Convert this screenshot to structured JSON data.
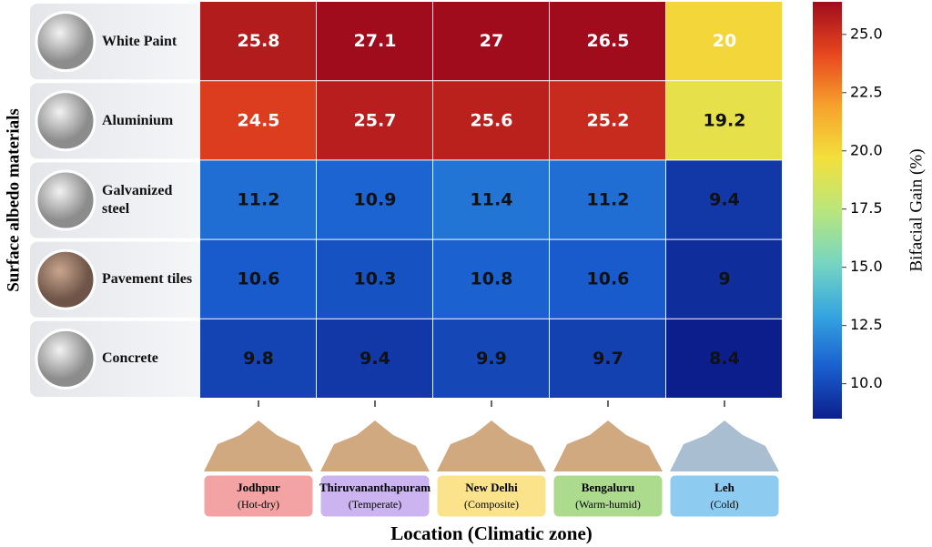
{
  "chart_data": {
    "type": "heatmap",
    "ylabel": "Surface albedo materials",
    "xlabel": "Location (Climatic zone)",
    "rows": [
      "White Paint",
      "Aluminium",
      "Galvanized steel",
      "Pavement tiles",
      "Concrete"
    ],
    "categories": [
      "Jodhpur",
      "Thiruvananthapuram",
      "New Delhi",
      "Bengaluru",
      "Leh"
    ],
    "zones": [
      "(Hot-dry)",
      "(Temperate)",
      "(Composite)",
      "(Warm-humid)",
      "(Cold)"
    ],
    "zone_colors": [
      "#f3a3a3",
      "#cbb4ef",
      "#fbe38c",
      "#acdb8e",
      "#8ecbf1"
    ],
    "values": [
      [
        25.8,
        27.1,
        27.0,
        26.5,
        20.0
      ],
      [
        24.5,
        25.7,
        25.6,
        25.2,
        19.2
      ],
      [
        11.2,
        10.9,
        11.4,
        11.2,
        9.4
      ],
      [
        10.6,
        10.3,
        10.8,
        10.6,
        9.0
      ],
      [
        9.8,
        9.4,
        9.9,
        9.7,
        8.4
      ]
    ],
    "colorbar_label": "Bifacial Gain (%)",
    "zlim": [
      8.5,
      26.4
    ],
    "zticks": [
      {
        "value": 10,
        "label": "10.0"
      },
      {
        "value": 12.5,
        "label": "12.5"
      },
      {
        "value": 15,
        "label": "15.0"
      },
      {
        "value": 17.5,
        "label": "17.5"
      },
      {
        "value": 20,
        "label": "20.0"
      },
      {
        "value": 22.5,
        "label": "22.5"
      },
      {
        "value": 25,
        "label": "25.0"
      }
    ],
    "colormap": [
      "#0c1e8c",
      "#1a5fd0",
      "#36a6e0",
      "#78d6c0",
      "#b9e67c",
      "#f3e03c",
      "#f6a22c",
      "#e8461f",
      "#a00c1c"
    ]
  }
}
